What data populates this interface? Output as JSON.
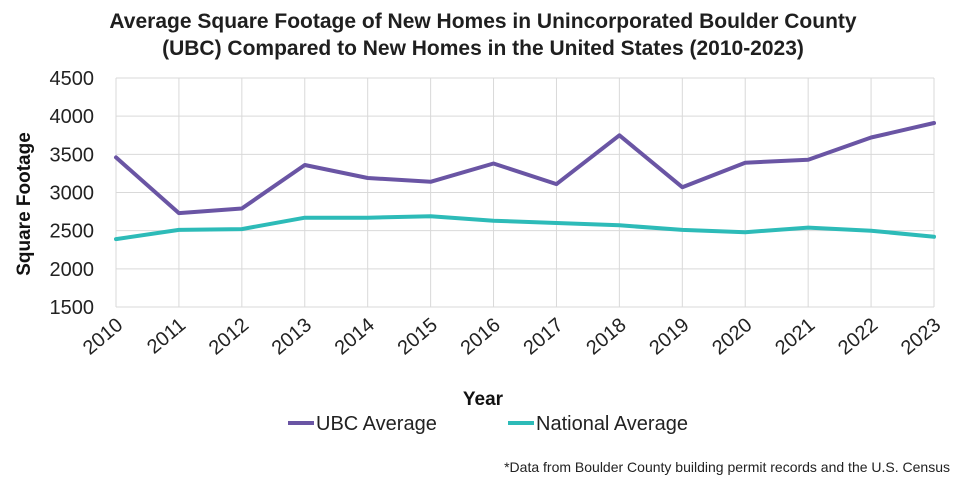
{
  "chart_data": {
    "type": "line",
    "title": [
      "Average Square Footage of New Homes in Unincorporated Boulder County",
      "(UBC) Compared to New Homes in the United States (2010-2023)"
    ],
    "xlabel": "Year",
    "ylabel": "Square Footage",
    "ylim": [
      1500,
      4500
    ],
    "yticks": [
      1500,
      2000,
      2500,
      3000,
      3500,
      4000,
      4500
    ],
    "grid": true,
    "legend_position": "bottom",
    "categories": [
      "2010",
      "2011",
      "2012",
      "2013",
      "2014",
      "2015",
      "2016",
      "2017",
      "2018",
      "2019",
      "2020",
      "2021",
      "2022",
      "2023"
    ],
    "series": [
      {
        "name": "UBC Average",
        "color": "#6a55a4",
        "values": [
          3460,
          2730,
          2790,
          3360,
          3190,
          3140,
          3380,
          3110,
          3750,
          3070,
          3390,
          3430,
          3720,
          3910
        ]
      },
      {
        "name": "National Average",
        "color": "#2dbbb8",
        "values": [
          2390,
          2510,
          2520,
          2670,
          2670,
          2690,
          2630,
          2600,
          2570,
          2510,
          2480,
          2540,
          2500,
          2420
        ]
      }
    ],
    "footnote": "*Data from Boulder County building permit records and the U.S. Census"
  }
}
